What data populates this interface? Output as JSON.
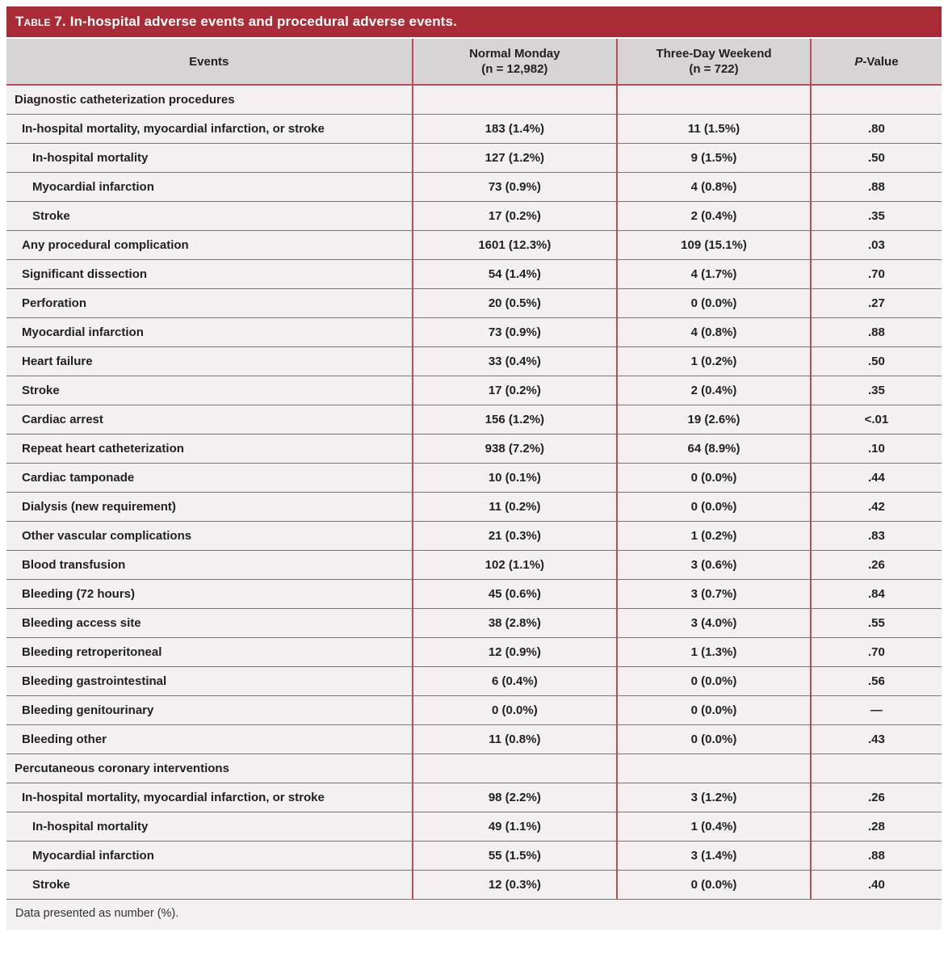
{
  "title": {
    "prefix": "Table 7.",
    "rest": "In-hospital adverse events and procedural adverse events."
  },
  "columns": [
    {
      "label": "Events"
    },
    {
      "label": "Normal Monday",
      "sub": "(n = 12,982)"
    },
    {
      "label": "Three-Day Weekend",
      "sub": "(n = 722)"
    },
    {
      "italic": "P",
      "rest": "-Value"
    }
  ],
  "rows": [
    {
      "label": "Diagnostic catheterization procedures",
      "indent": 0,
      "section": true,
      "normal_monday": "",
      "three_day_weekend": "",
      "p_value": ""
    },
    {
      "label": "In-hospital mortality, myocardial infarction, or stroke",
      "indent": 1,
      "section": false,
      "normal_monday": "183 (1.4%)",
      "three_day_weekend": "11 (1.5%)",
      "p_value": ".80"
    },
    {
      "label": "In-hospital mortality",
      "indent": 2,
      "section": false,
      "normal_monday": "127 (1.2%)",
      "three_day_weekend": "9 (1.5%)",
      "p_value": ".50"
    },
    {
      "label": "Myocardial infarction",
      "indent": 2,
      "section": false,
      "normal_monday": "73 (0.9%)",
      "three_day_weekend": "4 (0.8%)",
      "p_value": ".88"
    },
    {
      "label": "Stroke",
      "indent": 2,
      "section": false,
      "normal_monday": "17 (0.2%)",
      "three_day_weekend": "2 (0.4%)",
      "p_value": ".35"
    },
    {
      "label": "Any procedural complication",
      "indent": 1,
      "section": false,
      "normal_monday": "1601 (12.3%)",
      "three_day_weekend": "109 (15.1%)",
      "p_value": ".03"
    },
    {
      "label": "Significant dissection",
      "indent": 1,
      "section": false,
      "normal_monday": "54 (1.4%)",
      "three_day_weekend": "4 (1.7%)",
      "p_value": ".70"
    },
    {
      "label": "Perforation",
      "indent": 1,
      "section": false,
      "normal_monday": "20 (0.5%)",
      "three_day_weekend": "0 (0.0%)",
      "p_value": ".27"
    },
    {
      "label": "Myocardial infarction",
      "indent": 1,
      "section": false,
      "normal_monday": "73 (0.9%)",
      "three_day_weekend": "4 (0.8%)",
      "p_value": ".88"
    },
    {
      "label": "Heart failure",
      "indent": 1,
      "section": false,
      "normal_monday": "33 (0.4%)",
      "three_day_weekend": "1 (0.2%)",
      "p_value": ".50"
    },
    {
      "label": "Stroke",
      "indent": 1,
      "section": false,
      "normal_monday": "17 (0.2%)",
      "three_day_weekend": "2 (0.4%)",
      "p_value": ".35"
    },
    {
      "label": "Cardiac arrest",
      "indent": 1,
      "section": false,
      "normal_monday": "156 (1.2%)",
      "three_day_weekend": "19 (2.6%)",
      "p_value": "<.01"
    },
    {
      "label": "Repeat heart catheterization",
      "indent": 1,
      "section": false,
      "normal_monday": "938 (7.2%)",
      "three_day_weekend": "64 (8.9%)",
      "p_value": ".10"
    },
    {
      "label": "Cardiac tamponade",
      "indent": 1,
      "section": false,
      "normal_monday": "10 (0.1%)",
      "three_day_weekend": "0 (0.0%)",
      "p_value": ".44"
    },
    {
      "label": "Dialysis (new requirement)",
      "indent": 1,
      "section": false,
      "normal_monday": "11 (0.2%)",
      "three_day_weekend": "0 (0.0%)",
      "p_value": ".42"
    },
    {
      "label": "Other vascular complications",
      "indent": 1,
      "section": false,
      "normal_monday": "21 (0.3%)",
      "three_day_weekend": "1 (0.2%)",
      "p_value": ".83"
    },
    {
      "label": "Blood transfusion",
      "indent": 1,
      "section": false,
      "normal_monday": "102 (1.1%)",
      "three_day_weekend": "3 (0.6%)",
      "p_value": ".26"
    },
    {
      "label": "Bleeding (72 hours)",
      "indent": 1,
      "section": false,
      "normal_monday": "45 (0.6%)",
      "three_day_weekend": "3 (0.7%)",
      "p_value": ".84"
    },
    {
      "label": "Bleeding access site",
      "indent": 1,
      "section": false,
      "normal_monday": "38 (2.8%)",
      "three_day_weekend": "3 (4.0%)",
      "p_value": ".55"
    },
    {
      "label": "Bleeding retroperitoneal",
      "indent": 1,
      "section": false,
      "normal_monday": "12 (0.9%)",
      "three_day_weekend": "1 (1.3%)",
      "p_value": ".70"
    },
    {
      "label": "Bleeding gastrointestinal",
      "indent": 1,
      "section": false,
      "normal_monday": "6 (0.4%)",
      "three_day_weekend": "0 (0.0%)",
      "p_value": ".56"
    },
    {
      "label": "Bleeding genitourinary",
      "indent": 1,
      "section": false,
      "normal_monday": "0 (0.0%)",
      "three_day_weekend": "0 (0.0%)",
      "p_value": "—"
    },
    {
      "label": "Bleeding other",
      "indent": 1,
      "section": false,
      "normal_monday": "11 (0.8%)",
      "three_day_weekend": "0 (0.0%)",
      "p_value": ".43"
    },
    {
      "label": "Percutaneous coronary interventions",
      "indent": 0,
      "section": true,
      "normal_monday": "",
      "three_day_weekend": "",
      "p_value": ""
    },
    {
      "label": "In-hospital mortality, myocardial infarction, or stroke",
      "indent": 1,
      "section": false,
      "normal_monday": "98 (2.2%)",
      "three_day_weekend": "3 (1.2%)",
      "p_value": ".26"
    },
    {
      "label": "In-hospital mortality",
      "indent": 2,
      "section": false,
      "normal_monday": "49 (1.1%)",
      "three_day_weekend": "1 (0.4%)",
      "p_value": ".28"
    },
    {
      "label": "Myocardial infarction",
      "indent": 2,
      "section": false,
      "normal_monday": "55 (1.5%)",
      "three_day_weekend": "3 (1.4%)",
      "p_value": ".88"
    },
    {
      "label": "Stroke",
      "indent": 2,
      "section": false,
      "normal_monday": "12 (0.3%)",
      "three_day_weekend": "0 (0.0%)",
      "p_value": ".40"
    }
  ],
  "footnote": "Data presented as number (%).",
  "colors": {
    "title_bar": "#a92b36",
    "header_bg": "#d6d4d5",
    "row_bg": "#f2f0f1",
    "rule": "#c04a57",
    "text": "#231f20"
  }
}
